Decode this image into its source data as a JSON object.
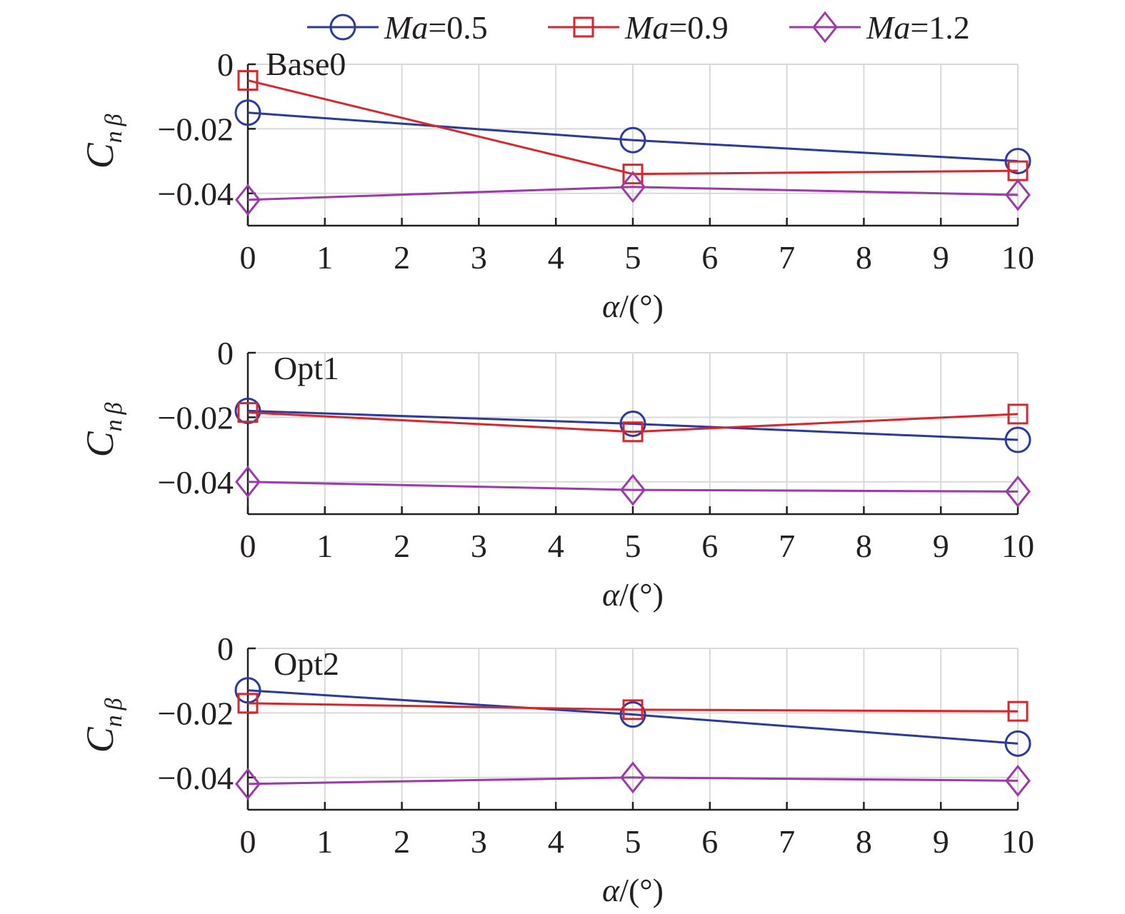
{
  "chart_data": {
    "type": "line",
    "legend": {
      "placement": "top",
      "entries": [
        {
          "name_italic": "Ma",
          "name_rest": "=0.5",
          "color": "#2b3a9b",
          "marker": "circle"
        },
        {
          "name_italic": "Ma",
          "name_rest": "=0.9",
          "color": "#d9252b",
          "marker": "square"
        },
        {
          "name_italic": "Ma",
          "name_rest": "=1.2",
          "color": "#9b3aa8",
          "marker": "diamond"
        }
      ]
    },
    "xlim": [
      0,
      10
    ],
    "ylim": [
      -0.05,
      0
    ],
    "x_ticks": [
      0,
      1,
      2,
      3,
      4,
      5,
      6,
      7,
      8,
      9,
      10
    ],
    "x_tick_labels": [
      "0",
      "1",
      "2",
      "3",
      "4",
      "5",
      "6",
      "7",
      "8",
      "9",
      "10"
    ],
    "y_ticks": [
      0,
      -0.02,
      -0.04
    ],
    "y_tick_labels": [
      "0",
      "−0.02",
      "−0.04"
    ],
    "xlabel": {
      "symbol": "α",
      "unit": "/(°)"
    },
    "ylabel": {
      "main": "C",
      "sub": "n β"
    },
    "grid": true,
    "panels": [
      {
        "label": "Base0",
        "x": [
          0,
          5,
          10
        ],
        "series": [
          {
            "name": "Ma=0.5",
            "values": [
              -0.015,
              -0.0235,
              -0.03
            ]
          },
          {
            "name": "Ma=0.9",
            "values": [
              -0.005,
              -0.034,
              -0.033
            ]
          },
          {
            "name": "Ma=1.2",
            "values": [
              -0.042,
              -0.038,
              -0.0405
            ]
          }
        ]
      },
      {
        "label": "Opt1",
        "x": [
          0,
          5,
          10
        ],
        "series": [
          {
            "name": "Ma=0.5",
            "values": [
              -0.018,
              -0.022,
              -0.027
            ]
          },
          {
            "name": "Ma=0.9",
            "values": [
              -0.0185,
              -0.0245,
              -0.019
            ]
          },
          {
            "name": "Ma=1.2",
            "values": [
              -0.04,
              -0.0425,
              -0.043
            ]
          }
        ]
      },
      {
        "label": "Opt2",
        "x": [
          0,
          5,
          10
        ],
        "series": [
          {
            "name": "Ma=0.5",
            "values": [
              -0.013,
              -0.0205,
              -0.0295
            ]
          },
          {
            "name": "Ma=0.9",
            "values": [
              -0.017,
              -0.019,
              -0.0195
            ]
          },
          {
            "name": "Ma=1.2",
            "values": [
              -0.042,
              -0.04,
              -0.041
            ]
          }
        ]
      }
    ]
  }
}
